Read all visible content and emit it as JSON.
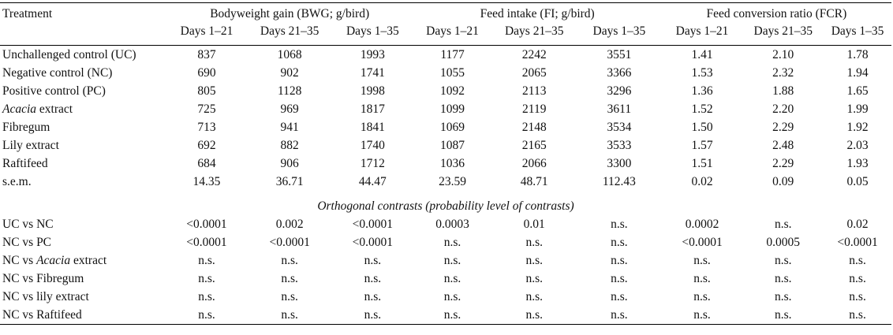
{
  "table": {
    "corner_label": "Treatment",
    "groups": [
      {
        "label": "Bodyweight gain (BWG; g/bird)"
      },
      {
        "label": "Feed intake (FI; g/bird)"
      },
      {
        "label": "Feed conversion ratio (FCR)"
      }
    ],
    "periods": [
      "Days 1–21",
      "Days 21–35",
      "Days 1–35",
      "Days 1–21",
      "Days 21–35",
      "Days 1–35",
      "Days 1–21",
      "Days 21–35",
      "Days 1–35"
    ],
    "rows": [
      {
        "pre": "",
        "ital": "",
        "post": "Unchallenged control (UC)",
        "values": [
          "837",
          "1068",
          "1993",
          "1177",
          "2242",
          "3551",
          "1.41",
          "2.10",
          "1.78"
        ]
      },
      {
        "pre": "",
        "ital": "",
        "post": "Negative control (NC)",
        "values": [
          "690",
          "902",
          "1741",
          "1055",
          "2065",
          "3366",
          "1.53",
          "2.32",
          "1.94"
        ]
      },
      {
        "pre": "",
        "ital": "",
        "post": "Positive control (PC)",
        "values": [
          "805",
          "1128",
          "1998",
          "1092",
          "2113",
          "3296",
          "1.36",
          "1.88",
          "1.65"
        ]
      },
      {
        "pre": "",
        "ital": "Acacia",
        "post": " extract",
        "values": [
          "725",
          "969",
          "1817",
          "1099",
          "2119",
          "3611",
          "1.52",
          "2.20",
          "1.99"
        ]
      },
      {
        "pre": "",
        "ital": "",
        "post": "Fibregum",
        "values": [
          "713",
          "941",
          "1841",
          "1069",
          "2148",
          "3534",
          "1.50",
          "2.29",
          "1.92"
        ]
      },
      {
        "pre": "",
        "ital": "",
        "post": "Lily extract",
        "values": [
          "692",
          "882",
          "1740",
          "1087",
          "2165",
          "3533",
          "1.57",
          "2.48",
          "2.03"
        ]
      },
      {
        "pre": "",
        "ital": "",
        "post": "Raftifeed",
        "values": [
          "684",
          "906",
          "1712",
          "1036",
          "2066",
          "3300",
          "1.51",
          "2.29",
          "1.93"
        ]
      },
      {
        "pre": "",
        "ital": "",
        "post": "s.e.m.",
        "values": [
          "14.35",
          "36.71",
          "44.47",
          "23.59",
          "48.71",
          "112.43",
          "0.02",
          "0.09",
          "0.05"
        ]
      }
    ],
    "contrast_title": "Orthogonal contrasts (probability level of contrasts)",
    "contrasts": [
      {
        "pre": "UC vs NC",
        "ital": "",
        "post": "",
        "values": [
          "<0.0001",
          "0.002",
          "<0.0001",
          "0.0003",
          "0.01",
          "n.s.",
          "0.0002",
          "n.s.",
          "0.02"
        ]
      },
      {
        "pre": "NC vs PC",
        "ital": "",
        "post": "",
        "values": [
          "<0.0001",
          "<0.0001",
          "<0.0001",
          "n.s.",
          "n.s.",
          "n.s.",
          "<0.0001",
          "0.0005",
          "<0.0001"
        ]
      },
      {
        "pre": "NC vs ",
        "ital": "Acacia",
        "post": " extract",
        "values": [
          "n.s.",
          "n.s.",
          "n.s.",
          "n.s.",
          "n.s.",
          "n.s.",
          "n.s.",
          "n.s.",
          "n.s."
        ]
      },
      {
        "pre": "NC vs Fibregum",
        "ital": "",
        "post": "",
        "values": [
          "n.s.",
          "n.s.",
          "n.s.",
          "n.s.",
          "n.s.",
          "n.s.",
          "n.s.",
          "n.s.",
          "n.s."
        ]
      },
      {
        "pre": "NC vs lily extract",
        "ital": "",
        "post": "",
        "values": [
          "n.s.",
          "n.s.",
          "n.s.",
          "n.s.",
          "n.s.",
          "n.s.",
          "n.s.",
          "n.s.",
          "n.s."
        ]
      },
      {
        "pre": "NC vs Raftifeed",
        "ital": "",
        "post": "",
        "values": [
          "n.s.",
          "n.s.",
          "n.s.",
          "n.s.",
          "n.s.",
          "n.s.",
          "n.s.",
          "n.s.",
          "n.s."
        ]
      }
    ]
  }
}
